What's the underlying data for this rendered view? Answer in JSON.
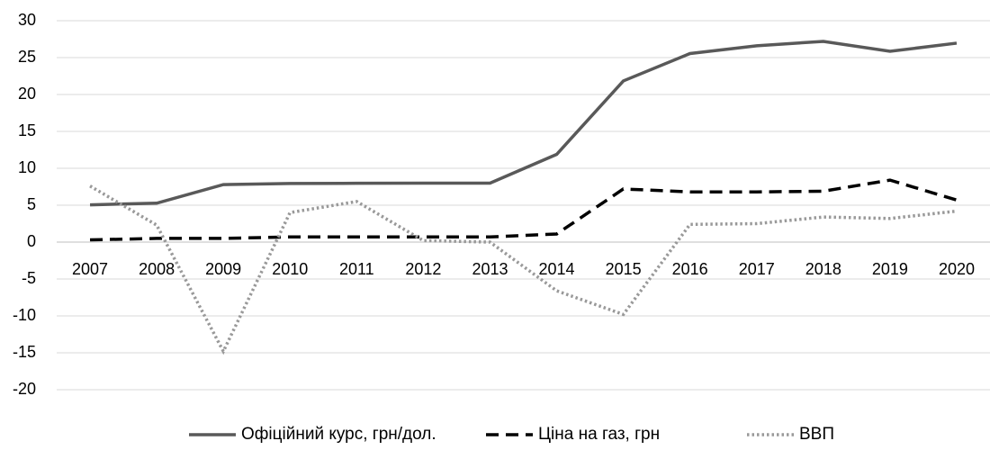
{
  "chart_data": {
    "type": "line",
    "categories": [
      "2007",
      "2008",
      "2009",
      "2010",
      "2011",
      "2012",
      "2013",
      "2014",
      "2015",
      "2016",
      "2017",
      "2018",
      "2019",
      "2020"
    ],
    "series": [
      {
        "name": "Офіційний курс, грн/дол.",
        "color": "#595959",
        "dash": "solid",
        "values": [
          5.05,
          5.27,
          7.79,
          7.94,
          7.97,
          7.99,
          7.99,
          11.89,
          21.84,
          25.55,
          26.6,
          27.2,
          25.85,
          26.96
        ]
      },
      {
        "name": "Ціна на газ, грн",
        "color": "#000000",
        "dash": "dashed",
        "values": [
          0.3,
          0.5,
          0.5,
          0.7,
          0.7,
          0.7,
          0.7,
          1.1,
          7.2,
          6.8,
          6.8,
          6.9,
          8.4,
          5.7
        ]
      },
      {
        "name": "ВВП",
        "color": "#999999",
        "dash": "dotted",
        "values": [
          7.6,
          2.3,
          -14.8,
          4.0,
          5.5,
          0.2,
          0.0,
          -6.6,
          -9.8,
          2.4,
          2.5,
          3.4,
          3.2,
          4.2
        ]
      }
    ],
    "ylim": [
      -20,
      30
    ],
    "yticks": [
      -20,
      -15,
      -10,
      -5,
      0,
      5,
      10,
      15,
      20,
      25,
      30
    ],
    "grid": true,
    "legend": "bottom"
  }
}
